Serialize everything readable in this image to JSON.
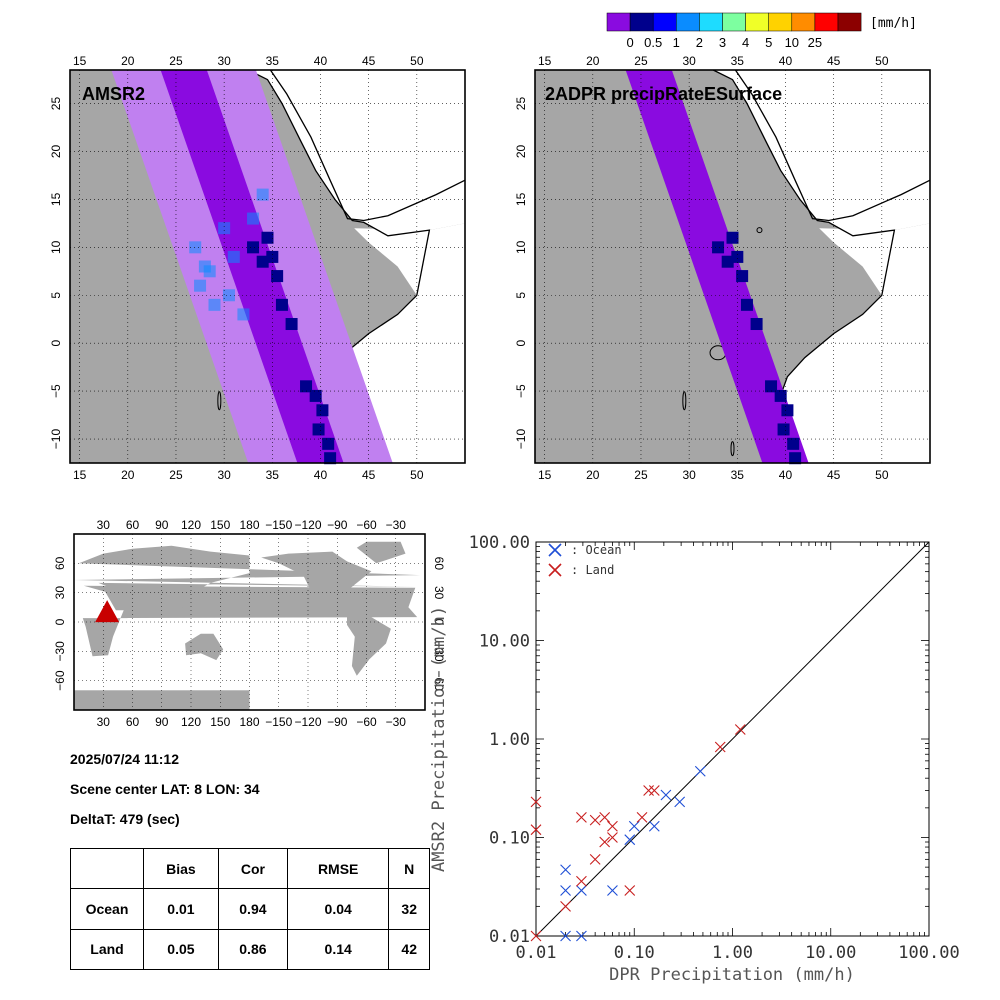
{
  "colorbar": {
    "colors": [
      "#8a0be0",
      "#00008c",
      "#0000ff",
      "#0a8cff",
      "#1edcff",
      "#7dffa0",
      "#f0ff28",
      "#ffd200",
      "#ff8c00",
      "#ff0000",
      "#8c0000"
    ],
    "labels": [
      "0",
      "0.5",
      "1",
      "2",
      "3",
      "4",
      "5",
      "10",
      "25"
    ],
    "unit": "[mm/h]"
  },
  "maps": {
    "amsr2_title": "AMSR2",
    "dpr_title": "2ADPR precipRateESurface",
    "lon_ticks": [
      "15",
      "20",
      "25",
      "30",
      "35",
      "40",
      "45",
      "50"
    ],
    "lat_ticks": [
      "25",
      "20",
      "15",
      "10",
      "5",
      "0",
      "−5",
      "−10"
    ],
    "land_color": "#a6a6a6",
    "ocean_color": "#ffffff",
    "light_swath_color": "#c080f0"
  },
  "globe": {
    "lon_ticks": [
      "30",
      "60",
      "90",
      "120",
      "150",
      "180",
      "−150",
      "−120",
      "−90",
      "−60",
      "−30"
    ],
    "lat_ticks": [
      "60",
      "30",
      "0",
      "−30",
      "−60"
    ],
    "marker": "red-triangle"
  },
  "info": {
    "datetime": "2025/07/24 11:12",
    "scene_center": "Scene center LAT:  8   LON:  34",
    "delta_t": "DeltaT:  479 (sec)"
  },
  "stats_table": {
    "headers": [
      "",
      "Bias",
      "Cor",
      "RMSE",
      "N"
    ],
    "rows": [
      {
        "label": "Ocean",
        "bias": "0.01",
        "cor": "0.94",
        "rmse": "0.04",
        "n": "32"
      },
      {
        "label": "Land",
        "bias": "0.05",
        "cor": "0.86",
        "rmse": "0.14",
        "n": "42"
      }
    ]
  },
  "chart_data": {
    "type": "scatter",
    "xscale": "log",
    "yscale": "log",
    "xlim": [
      0.01,
      100
    ],
    "ylim": [
      0.01,
      100
    ],
    "xlabel": "DPR Precipitation (mm/h)",
    "ylabel": "AMSR2 Precipitation (mm/h)",
    "xticks": [
      "0.01",
      "0.10",
      "1.00",
      "10.00",
      "100.00"
    ],
    "yticks": [
      "0.01",
      "0.10",
      "1.00",
      "10.00",
      "100.00"
    ],
    "legend_position": "top-left",
    "one_to_one_line": true,
    "series": [
      {
        "name": ": Ocean",
        "color": "#1f4fd6",
        "marker": "x",
        "points": [
          [
            0.02,
            0.047
          ],
          [
            0.02,
            0.029
          ],
          [
            0.02,
            0.01
          ],
          [
            0.029,
            0.029
          ],
          [
            0.029,
            0.01
          ],
          [
            0.06,
            0.029
          ],
          [
            0.09,
            0.095
          ],
          [
            0.1,
            0.13
          ],
          [
            0.16,
            0.13
          ],
          [
            0.21,
            0.27
          ],
          [
            0.29,
            0.23
          ],
          [
            0.47,
            0.47
          ]
        ]
      },
      {
        "name": ": Land",
        "color": "#c81e1e",
        "marker": "x",
        "points": [
          [
            0.01,
            0.23
          ],
          [
            0.01,
            0.12
          ],
          [
            0.01,
            0.01
          ],
          [
            0.02,
            0.02
          ],
          [
            0.029,
            0.036
          ],
          [
            0.029,
            0.16
          ],
          [
            0.04,
            0.06
          ],
          [
            0.04,
            0.15
          ],
          [
            0.05,
            0.09
          ],
          [
            0.05,
            0.16
          ],
          [
            0.06,
            0.1
          ],
          [
            0.06,
            0.13
          ],
          [
            0.09,
            0.029
          ],
          [
            0.12,
            0.16
          ],
          [
            0.14,
            0.3
          ],
          [
            0.16,
            0.3
          ],
          [
            0.75,
            0.83
          ],
          [
            1.2,
            1.25
          ]
        ]
      }
    ]
  }
}
